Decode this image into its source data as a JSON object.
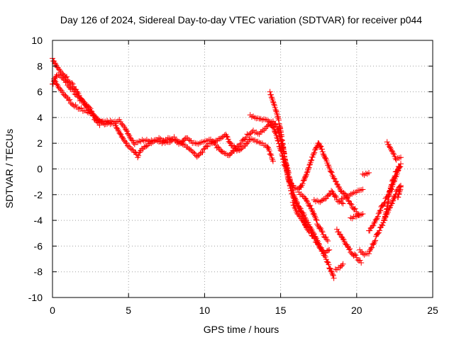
{
  "chart_data": {
    "type": "scatter",
    "title": "Day 126 of 2024, Sidereal Day-to-day VTEC variation (SDTVAR) for receiver p044",
    "xlabel": "GPS time / hours",
    "ylabel": "SDTVAR / TECUs",
    "xlim": [
      0,
      25
    ],
    "ylim": [
      -10,
      10
    ],
    "xticks": [
      0,
      5,
      10,
      15,
      20,
      25
    ],
    "yticks": [
      -10,
      -8,
      -6,
      -4,
      -2,
      0,
      2,
      4,
      6,
      8,
      10
    ],
    "grid": true,
    "marker": "+",
    "series": [
      {
        "name": "p044",
        "color": "#ff0000",
        "tracks": [
          [
            [
              0.0,
              8.6
            ],
            [
              0.3,
              8.0
            ],
            [
              0.6,
              7.5
            ],
            [
              1.0,
              7.0
            ],
            [
              1.4,
              6.4
            ],
            [
              1.8,
              5.6
            ],
            [
              2.1,
              5.0
            ],
            [
              2.5,
              4.4
            ],
            [
              3.0,
              3.8
            ],
            [
              3.5,
              3.4
            ],
            [
              4.0,
              3.6
            ],
            [
              4.4,
              3.8
            ],
            [
              4.8,
              3.2
            ],
            [
              5.1,
              2.5
            ],
            [
              5.4,
              2.0
            ],
            [
              5.7,
              2.2
            ],
            [
              6.0,
              2.3
            ],
            [
              6.4,
              2.1
            ],
            [
              6.8,
              2.2
            ],
            [
              7.2,
              2.0
            ],
            [
              7.6,
              2.3
            ],
            [
              8.0,
              2.2
            ],
            [
              8.4,
              2.0
            ],
            [
              8.8,
              2.5
            ],
            [
              9.2,
              2.1
            ],
            [
              9.6,
              2.0
            ],
            [
              10.0,
              2.2
            ],
            [
              10.4,
              2.3
            ],
            [
              10.8,
              1.7
            ],
            [
              11.2,
              1.2
            ],
            [
              11.6,
              1.0
            ],
            [
              12.0,
              1.5
            ],
            [
              12.4,
              2.0
            ],
            [
              12.8,
              2.6
            ],
            [
              13.2,
              3.0
            ],
            [
              13.6,
              2.8
            ],
            [
              14.0,
              3.2
            ],
            [
              14.3,
              3.6
            ],
            [
              14.6,
              3.0
            ],
            [
              15.0,
              1.5
            ],
            [
              15.3,
              0.2
            ],
            [
              15.6,
              -1.0
            ],
            [
              15.9,
              -1.5
            ],
            [
              16.2,
              -1.6
            ],
            [
              16.5,
              -1.0
            ],
            [
              16.8,
              0.0
            ],
            [
              17.1,
              1.0
            ],
            [
              17.3,
              1.6
            ],
            [
              17.5,
              2.1
            ],
            [
              17.8,
              1.2
            ],
            [
              18.1,
              0.3
            ],
            [
              18.4,
              -0.5
            ],
            [
              18.7,
              -1.2
            ],
            [
              19.0,
              -1.8
            ],
            [
              19.3,
              -2.1
            ],
            [
              19.6,
              -2.7
            ],
            [
              19.9,
              -3.2
            ],
            [
              20.2,
              -3.6
            ]
          ],
          [
            [
              0.1,
              7.0
            ],
            [
              0.4,
              6.4
            ],
            [
              0.8,
              5.8
            ],
            [
              1.2,
              5.2
            ],
            [
              1.6,
              4.8
            ],
            [
              2.0,
              4.6
            ],
            [
              2.3,
              4.4
            ],
            [
              2.6,
              4.2
            ],
            [
              3.0,
              3.7
            ],
            [
              3.4,
              3.6
            ],
            [
              3.8,
              3.7
            ],
            [
              4.1,
              3.5
            ],
            [
              4.4,
              2.9
            ],
            [
              4.7,
              2.3
            ],
            [
              5.0,
              1.8
            ],
            [
              5.3,
              1.5
            ],
            [
              5.6,
              1.0
            ],
            [
              5.8,
              1.4
            ],
            [
              6.1,
              1.7
            ],
            [
              6.5,
              2.0
            ],
            [
              7.0,
              2.3
            ],
            [
              7.5,
              2.0
            ],
            [
              8.0,
              2.4
            ],
            [
              8.4,
              2.1
            ],
            [
              8.8,
              1.8
            ],
            [
              9.2,
              1.4
            ],
            [
              9.5,
              1.0
            ],
            [
              9.8,
              1.3
            ],
            [
              10.2,
              1.8
            ],
            [
              10.6,
              2.0
            ],
            [
              11.0,
              2.3
            ],
            [
              11.4,
              2.6
            ],
            [
              11.8,
              1.8
            ],
            [
              12.2,
              1.4
            ],
            [
              12.6,
              1.8
            ],
            [
              13.0,
              2.4
            ],
            [
              13.4,
              2.2
            ],
            [
              13.8,
              2.0
            ],
            [
              14.1,
              1.8
            ],
            [
              14.3,
              1.2
            ],
            [
              14.5,
              0.6
            ]
          ],
          [
            [
              0.0,
              6.6
            ],
            [
              0.3,
              7.4
            ],
            [
              0.6,
              7.2
            ],
            [
              1.0,
              6.6
            ],
            [
              1.4,
              6.0
            ],
            [
              1.8,
              5.4
            ],
            [
              2.2,
              5.0
            ],
            [
              2.5,
              4.6
            ],
            [
              2.8,
              3.8
            ],
            [
              3.1,
              3.4
            ]
          ],
          [
            [
              13.0,
              4.2
            ],
            [
              13.4,
              4.0
            ],
            [
              13.8,
              3.9
            ],
            [
              14.2,
              3.8
            ],
            [
              14.5,
              3.7
            ],
            [
              14.8,
              3.2
            ],
            [
              15.1,
              1.8
            ],
            [
              15.4,
              0.2
            ],
            [
              15.7,
              -1.2
            ],
            [
              16.0,
              -2.5
            ],
            [
              16.3,
              -3.3
            ],
            [
              16.5,
              -3.7
            ],
            [
              16.6,
              -4.2
            ],
            [
              16.7,
              -4.5
            ]
          ],
          [
            [
              14.3,
              6.0
            ],
            [
              14.5,
              5.3
            ],
            [
              14.7,
              4.6
            ],
            [
              14.9,
              3.6
            ],
            [
              15.1,
              2.2
            ],
            [
              15.3,
              0.6
            ],
            [
              15.5,
              -0.8
            ],
            [
              15.7,
              -1.8
            ],
            [
              15.9,
              -2.5
            ],
            [
              16.2,
              -3.0
            ],
            [
              16.5,
              -3.5
            ],
            [
              16.8,
              -4.2
            ],
            [
              17.1,
              -4.8
            ],
            [
              17.4,
              -5.5
            ],
            [
              17.7,
              -6.3
            ],
            [
              18.0,
              -7.0
            ],
            [
              18.2,
              -7.6
            ],
            [
              18.5,
              -8.5
            ]
          ],
          [
            [
              15.8,
              -2.6
            ],
            [
              16.1,
              -3.4
            ],
            [
              16.4,
              -3.9
            ],
            [
              16.7,
              -4.5
            ],
            [
              17.0,
              -5.0
            ],
            [
              17.3,
              -5.6
            ],
            [
              17.6,
              -6.2
            ],
            [
              17.9,
              -6.6
            ],
            [
              18.2,
              -6.3
            ]
          ],
          [
            [
              16.2,
              -1.8
            ],
            [
              16.6,
              -2.2
            ],
            [
              17.0,
              -3.0
            ],
            [
              17.4,
              -4.2
            ],
            [
              17.8,
              -5.1
            ],
            [
              18.1,
              -5.6
            ]
          ],
          [
            [
              17.2,
              -2.4
            ],
            [
              17.6,
              -2.5
            ],
            [
              18.0,
              -2.2
            ],
            [
              18.4,
              -1.7
            ],
            [
              18.7,
              -2.4
            ],
            [
              19.1,
              -2.7
            ]
          ],
          [
            [
              18.7,
              -4.7
            ],
            [
              19.0,
              -5.2
            ],
            [
              19.3,
              -5.8
            ],
            [
              19.6,
              -6.4
            ],
            [
              20.0,
              -6.9
            ],
            [
              20.3,
              -7.3
            ]
          ],
          [
            [
              18.6,
              -7.8
            ],
            [
              18.9,
              -7.6
            ],
            [
              19.1,
              -7.4
            ]
          ],
          [
            [
              19.0,
              -2.3
            ],
            [
              19.5,
              -2.0
            ],
            [
              20.0,
              -1.7
            ],
            [
              20.4,
              -1.6
            ]
          ],
          [
            [
              19.6,
              -3.8
            ],
            [
              20.0,
              -3.6
            ],
            [
              20.4,
              -3.5
            ]
          ],
          [
            [
              20.4,
              -0.4
            ],
            [
              20.8,
              -0.3
            ]
          ],
          [
            [
              20.2,
              -6.3
            ],
            [
              20.5,
              -6.6
            ],
            [
              20.8,
              -6.5
            ],
            [
              21.1,
              -5.8
            ],
            [
              21.4,
              -5.0
            ],
            [
              21.7,
              -4.3
            ],
            [
              22.0,
              -3.5
            ],
            [
              22.3,
              -2.8
            ],
            [
              22.6,
              -1.8
            ],
            [
              22.9,
              -1.3
            ]
          ],
          [
            [
              20.8,
              -4.8
            ],
            [
              21.1,
              -4.3
            ],
            [
              21.4,
              -3.6
            ],
            [
              21.7,
              -2.8
            ],
            [
              22.0,
              -2.2
            ],
            [
              22.3,
              -1.5
            ],
            [
              22.6,
              -0.6
            ],
            [
              22.9,
              0.4
            ]
          ],
          [
            [
              21.8,
              -4.0
            ],
            [
              22.0,
              -3.0
            ],
            [
              22.2,
              -1.6
            ],
            [
              22.4,
              -0.8
            ],
            [
              22.6,
              -0.2
            ],
            [
              22.8,
              0.2
            ]
          ],
          [
            [
              22.0,
              2.1
            ],
            [
              22.3,
              1.5
            ],
            [
              22.6,
              0.8
            ],
            [
              22.9,
              0.9
            ]
          ],
          [
            [
              22.7,
              -2.2
            ],
            [
              22.9,
              -1.4
            ]
          ]
        ]
      }
    ]
  }
}
